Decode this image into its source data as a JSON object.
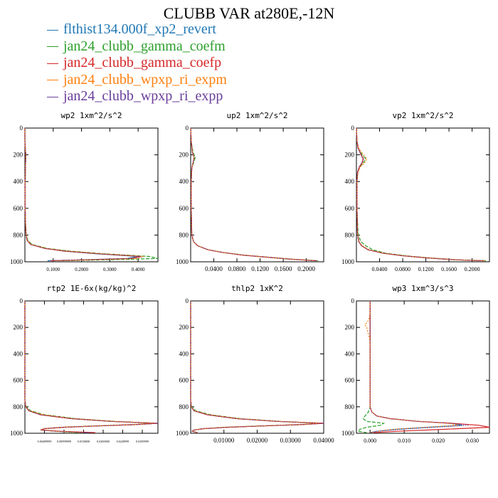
{
  "title": "CLUBB VAR at280E,-12N",
  "legend": [
    {
      "label": "flthist134.000f_xp2_revert",
      "color": "#1f77b4"
    },
    {
      "label": "jan24_clubb_gamma_coefm",
      "color": "#2ca02c"
    },
    {
      "label": "jan24_clubb_gamma_coefp",
      "color": "#d62728"
    },
    {
      "label": "jan24_clubb_wpxp_ri_expm",
      "color": "#ff7f0e"
    },
    {
      "label": "jan24_clubb_wpxp_ri_expp",
      "color": "#6a3d9a"
    }
  ],
  "chart_data": [
    {
      "type": "line",
      "title": "wp2  1xm^2/s^2",
      "ylim": [
        0,
        1000
      ],
      "y_inverted": true,
      "y_ticks": [
        "0",
        "200",
        "400",
        "600",
        "800",
        "1000"
      ],
      "xlim": [
        0,
        0.47
      ],
      "x_ticks": [
        {
          "v": 0.1,
          "label": "0.1000"
        },
        {
          "v": 0.2,
          "label": "0.2000"
        },
        {
          "v": 0.3,
          "label": "0.3000"
        },
        {
          "v": 0.4,
          "label": "0.4000"
        }
      ],
      "y": [
        0,
        100,
        200,
        300,
        400,
        500,
        600,
        700,
        800,
        840,
        870,
        900,
        920,
        940,
        960,
        975,
        985,
        992
      ],
      "series": [
        {
          "values": [
            0,
            0,
            0.003,
            0.002,
            0.001,
            0.001,
            0.001,
            0.002,
            0.004,
            0.008,
            0.02,
            0.07,
            0.14,
            0.25,
            0.4,
            0.36,
            0.2,
            0.08
          ]
        },
        {
          "values": [
            0,
            0,
            0.003,
            0.002,
            0.001,
            0.001,
            0.001,
            0.002,
            0.005,
            0.01,
            0.025,
            0.08,
            0.16,
            0.28,
            0.44,
            0.47,
            0.3,
            0.12
          ]
        },
        {
          "values": [
            0,
            0,
            0.003,
            0.002,
            0.001,
            0.001,
            0.001,
            0.002,
            0.004,
            0.008,
            0.02,
            0.07,
            0.14,
            0.26,
            0.41,
            0.38,
            0.22,
            0.09
          ]
        },
        {
          "values": [
            0,
            0,
            0.003,
            0.002,
            0.001,
            0.001,
            0.001,
            0.002,
            0.004,
            0.009,
            0.022,
            0.075,
            0.15,
            0.27,
            0.42,
            0.4,
            0.24,
            0.1
          ]
        },
        {
          "values": [
            0,
            0,
            0.003,
            0.002,
            0.001,
            0.001,
            0.001,
            0.002,
            0.004,
            0.008,
            0.02,
            0.07,
            0.14,
            0.26,
            0.41,
            0.37,
            0.21,
            0.09
          ]
        }
      ]
    },
    {
      "type": "line",
      "title": "up2  1xm^2/s^2",
      "ylim": [
        0,
        1000
      ],
      "y_inverted": true,
      "y_ticks": [
        "0",
        "200",
        "400",
        "600",
        "800",
        "1000"
      ],
      "xlim": [
        0,
        0.23
      ],
      "x_ticks": [
        {
          "v": 0.04,
          "label": "0.0400"
        },
        {
          "v": 0.08,
          "label": "0.0800"
        },
        {
          "v": 0.12,
          "label": "0.1200"
        },
        {
          "v": 0.16,
          "label": "0.1600"
        },
        {
          "v": 0.2,
          "label": "0.2000"
        }
      ],
      "y": [
        0,
        100,
        180,
        220,
        260,
        300,
        400,
        600,
        800,
        850,
        880,
        910,
        930,
        950,
        965,
        980,
        992
      ],
      "series": [
        {
          "values": [
            0,
            0.001,
            0.003,
            0.006,
            0.004,
            0.002,
            0.001,
            0.001,
            0.002,
            0.005,
            0.012,
            0.03,
            0.055,
            0.09,
            0.13,
            0.17,
            0.215
          ]
        },
        {
          "values": [
            0,
            0.001,
            0.004,
            0.008,
            0.005,
            0.002,
            0.001,
            0.001,
            0.002,
            0.005,
            0.012,
            0.03,
            0.056,
            0.092,
            0.133,
            0.175,
            0.22
          ]
        },
        {
          "values": [
            0,
            0.001,
            0.003,
            0.006,
            0.004,
            0.002,
            0.001,
            0.001,
            0.002,
            0.005,
            0.012,
            0.03,
            0.055,
            0.09,
            0.13,
            0.172,
            0.218
          ]
        },
        {
          "values": [
            0,
            0.001,
            0.003,
            0.006,
            0.004,
            0.002,
            0.001,
            0.001,
            0.002,
            0.005,
            0.012,
            0.03,
            0.055,
            0.09,
            0.13,
            0.17,
            0.216
          ]
        },
        {
          "values": [
            0,
            0.001,
            0.003,
            0.006,
            0.004,
            0.002,
            0.001,
            0.001,
            0.002,
            0.005,
            0.012,
            0.03,
            0.055,
            0.09,
            0.13,
            0.171,
            0.217
          ]
        }
      ]
    },
    {
      "type": "line",
      "title": "vp2  1xm^2/s^2",
      "ylim": [
        0,
        1000
      ],
      "y_inverted": true,
      "y_ticks": [
        "0",
        "200",
        "400",
        "600",
        "800",
        "1000"
      ],
      "xlim": [
        0,
        0.23
      ],
      "x_ticks": [
        {
          "v": 0.04,
          "label": "0.0400"
        },
        {
          "v": 0.08,
          "label": "0.0800"
        },
        {
          "v": 0.12,
          "label": "0.1200"
        },
        {
          "v": 0.16,
          "label": "0.1600"
        },
        {
          "v": 0.2,
          "label": "0.2000"
        }
      ],
      "y": [
        0,
        100,
        150,
        200,
        230,
        260,
        290,
        330,
        400,
        600,
        800,
        850,
        880,
        910,
        935,
        955,
        970,
        985,
        992
      ],
      "series": [
        {
          "values": [
            0,
            0.001,
            0.003,
            0.008,
            0.012,
            0.01,
            0.005,
            0.002,
            0.001,
            0.001,
            0.002,
            0.004,
            0.009,
            0.02,
            0.045,
            0.08,
            0.12,
            0.17,
            0.22
          ]
        },
        {
          "values": [
            0,
            0.001,
            0.003,
            0.01,
            0.016,
            0.012,
            0.006,
            0.002,
            0.001,
            0.001,
            0.003,
            0.008,
            0.016,
            0.028,
            0.05,
            0.085,
            0.125,
            0.175,
            0.225
          ]
        },
        {
          "values": [
            0,
            0.001,
            0.003,
            0.008,
            0.012,
            0.01,
            0.005,
            0.002,
            0.001,
            0.001,
            0.002,
            0.004,
            0.009,
            0.02,
            0.045,
            0.08,
            0.12,
            0.172,
            0.222
          ]
        },
        {
          "values": [
            0,
            0.001,
            0.004,
            0.012,
            0.018,
            0.014,
            0.007,
            0.003,
            0.001,
            0.001,
            0.002,
            0.005,
            0.01,
            0.022,
            0.047,
            0.082,
            0.122,
            0.172,
            0.222
          ]
        },
        {
          "values": [
            0,
            0.001,
            0.003,
            0.008,
            0.011,
            0.009,
            0.005,
            0.002,
            0.001,
            0.001,
            0.002,
            0.004,
            0.009,
            0.02,
            0.045,
            0.08,
            0.12,
            0.171,
            0.221
          ]
        }
      ]
    },
    {
      "type": "line",
      "title": "rtp2  1E-6x(kg/kg)^2",
      "ylim": [
        0,
        1000
      ],
      "y_inverted": true,
      "y_ticks": [
        "0",
        "200",
        "400",
        "600",
        "800",
        "1000"
      ],
      "xlim": [
        0,
        0.034
      ],
      "x_ticks": [
        {
          "v": 0.005,
          "label": "0.00499999"
        },
        {
          "v": 0.01,
          "label": "0.00999999"
        },
        {
          "v": 0.015,
          "label": "0.0150000"
        },
        {
          "v": 0.02,
          "label": "0.0200000"
        },
        {
          "v": 0.025,
          "label": "0.0249999"
        },
        {
          "v": 0.03,
          "label": "0.0299999"
        }
      ],
      "y": [
        0,
        500,
        750,
        800,
        830,
        860,
        890,
        910,
        925,
        935,
        945,
        955,
        965,
        975,
        985,
        995
      ],
      "series": [
        {
          "values": [
            0,
            0,
            0,
            0.0002,
            0.001,
            0.004,
            0.012,
            0.022,
            0.034,
            0.028,
            0.018,
            0.01,
            0.005,
            0.004,
            0.008,
            0.016
          ]
        },
        {
          "values": [
            0,
            0,
            0,
            0.0003,
            0.0015,
            0.005,
            0.013,
            0.023,
            0.033,
            0.027,
            0.017,
            0.009,
            0.005,
            0.004,
            0.008,
            0.014
          ]
        },
        {
          "values": [
            0,
            0,
            0,
            0.0002,
            0.001,
            0.004,
            0.012,
            0.022,
            0.034,
            0.028,
            0.018,
            0.01,
            0.005,
            0.004,
            0.009,
            0.018
          ]
        },
        {
          "values": [
            0,
            0,
            0,
            0.0002,
            0.0012,
            0.0045,
            0.0125,
            0.0225,
            0.0335,
            0.0275,
            0.0175,
            0.0095,
            0.005,
            0.004,
            0.008,
            0.015
          ]
        },
        {
          "values": [
            0,
            0,
            0,
            0.0002,
            0.001,
            0.004,
            0.012,
            0.022,
            0.034,
            0.028,
            0.018,
            0.01,
            0.005,
            0.004,
            0.008,
            0.017
          ]
        }
      ]
    },
    {
      "type": "line",
      "title": "thlp2  1xK^2",
      "ylim": [
        0,
        1000
      ],
      "y_inverted": true,
      "y_ticks": [
        "0",
        "200",
        "400",
        "600",
        "800",
        "1000"
      ],
      "xlim": [
        0,
        0.04
      ],
      "x_ticks": [
        {
          "v": 0.01,
          "label": "0.01000"
        },
        {
          "v": 0.02,
          "label": "0.02000"
        },
        {
          "v": 0.03,
          "label": "0.03000"
        },
        {
          "v": 0.04,
          "label": "0.04000"
        }
      ],
      "y": [
        0,
        500,
        750,
        800,
        830,
        860,
        890,
        910,
        925,
        935,
        945,
        955,
        965,
        975,
        985,
        995
      ],
      "series": [
        {
          "values": [
            0,
            0,
            0,
            0.0002,
            0.001,
            0.005,
            0.014,
            0.026,
            0.04,
            0.033,
            0.021,
            0.011,
            0.004,
            0.001,
            0.0005,
            0.002
          ]
        },
        {
          "values": [
            0,
            0,
            0,
            0.0003,
            0.0015,
            0.006,
            0.015,
            0.027,
            0.039,
            0.032,
            0.02,
            0.01,
            0.004,
            0.001,
            0.0005,
            0.002
          ]
        },
        {
          "values": [
            0,
            0,
            0,
            0.0002,
            0.001,
            0.005,
            0.014,
            0.026,
            0.04,
            0.033,
            0.021,
            0.011,
            0.004,
            0.001,
            0.0005,
            0.002
          ]
        },
        {
          "values": [
            0,
            0,
            0,
            0.0002,
            0.0012,
            0.0055,
            0.0145,
            0.0265,
            0.0395,
            0.0325,
            0.0205,
            0.0105,
            0.004,
            0.001,
            0.0005,
            0.002
          ]
        },
        {
          "values": [
            0,
            0,
            0,
            0.0002,
            0.001,
            0.005,
            0.014,
            0.026,
            0.04,
            0.033,
            0.021,
            0.011,
            0.004,
            0.001,
            0.0005,
            0.002
          ]
        }
      ]
    },
    {
      "type": "line",
      "title": "wp3  1xm^3/s^3",
      "ylim": [
        0,
        1000
      ],
      "y_inverted": true,
      "y_ticks": [
        "0",
        "200",
        "400",
        "600",
        "800",
        "1000"
      ],
      "xlim": [
        -0.004,
        0.035
      ],
      "x_ticks": [
        {
          "v": 0.0,
          "label": "0.000"
        },
        {
          "v": 0.01,
          "label": "0.010"
        },
        {
          "v": 0.02,
          "label": "0.020"
        },
        {
          "v": 0.03,
          "label": "0.030"
        }
      ],
      "y": [
        0,
        100,
        150,
        180,
        200,
        250,
        300,
        400,
        600,
        800,
        840,
        870,
        890,
        910,
        925,
        940,
        955,
        970,
        985,
        995
      ],
      "series": [
        {
          "values": [
            0,
            0,
            0,
            0,
            0,
            0,
            0,
            0,
            0,
            0,
            0.0005,
            0.002,
            0.006,
            0.014,
            0.024,
            0.027,
            0.017,
            0.008,
            0.002,
            0
          ]
        },
        {
          "values": [
            0,
            0,
            0,
            0,
            0,
            0,
            0,
            0,
            0,
            0,
            -0.0005,
            -0.0015,
            -0.002,
            -0.001,
            0.004,
            0.003,
            -0.001,
            -0.003,
            -0.0035,
            -0.001
          ]
        },
        {
          "values": [
            0,
            0,
            0,
            0,
            0,
            0,
            0,
            0,
            0,
            0,
            0.0005,
            0.002,
            0.006,
            0.014,
            0.024,
            0.032,
            0.035,
            0.022,
            0.008,
            0.001
          ]
        },
        {
          "values": [
            0,
            0,
            -0.0005,
            -0.0015,
            -0.001,
            -0.0005,
            0,
            0,
            0,
            0,
            0.0005,
            0.002,
            0.006,
            0.014,
            0.023,
            0.026,
            0.016,
            0.007,
            0.002,
            0
          ]
        },
        {
          "values": [
            0,
            0,
            0,
            0,
            0,
            0,
            0,
            0,
            0,
            0,
            0.0005,
            0.002,
            0.006,
            0.014,
            0.024,
            0.029,
            0.019,
            0.009,
            0.002,
            0
          ]
        }
      ]
    }
  ]
}
